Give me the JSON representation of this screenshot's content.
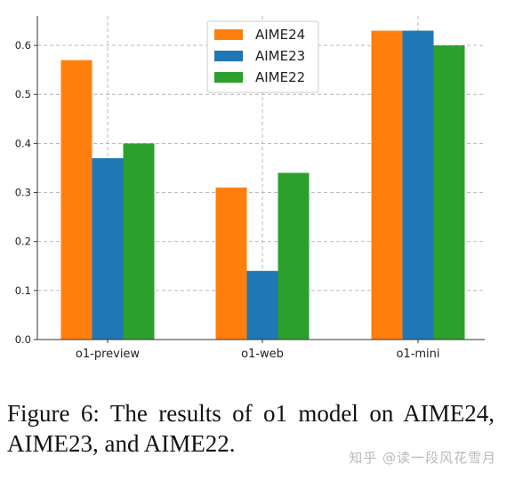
{
  "chart_data": {
    "type": "bar",
    "categories": [
      "o1-preview",
      "o1-web",
      "o1-mini"
    ],
    "series": [
      {
        "name": "AIME24",
        "color": "#ff7f0e",
        "values": [
          0.57,
          0.31,
          0.63
        ]
      },
      {
        "name": "AIME23",
        "color": "#1f77b4",
        "values": [
          0.37,
          0.14,
          0.63
        ]
      },
      {
        "name": "AIME22",
        "color": "#2ca02c",
        "values": [
          0.4,
          0.34,
          0.6
        ]
      }
    ],
    "yticks": [
      "0.0",
      "0.1",
      "0.2",
      "0.3",
      "0.4",
      "0.5",
      "0.6"
    ],
    "ylim": [
      0,
      0.66
    ],
    "grid": true,
    "legend_position": "top-center",
    "title": "",
    "xlabel": "",
    "ylabel": ""
  },
  "caption": "Figure 6: The results of o1 model on AIME24, AIME23, and AIME22.",
  "watermark": "知乎 @读一段风花雪月"
}
